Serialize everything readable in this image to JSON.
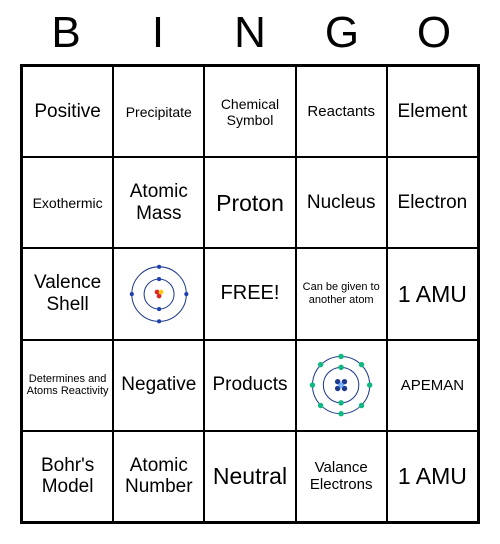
{
  "header": [
    "B",
    "I",
    "N",
    "G",
    "O"
  ],
  "cells": [
    {
      "text": "Positive",
      "cls": "large"
    },
    {
      "text": "Precipitate",
      "cls": ""
    },
    {
      "text": "Chemical Symbol",
      "cls": ""
    },
    {
      "text": "Reactants",
      "cls": "med"
    },
    {
      "text": "Element",
      "cls": "large"
    },
    {
      "text": "Exothermic",
      "cls": ""
    },
    {
      "text": "Atomic Mass",
      "cls": "large"
    },
    {
      "text": "Proton",
      "cls": "xlarge"
    },
    {
      "text": "Nucleus",
      "cls": "large"
    },
    {
      "text": "Electron",
      "cls": "large"
    },
    {
      "text": "Valence Shell",
      "cls": "large"
    },
    {
      "type": "atom1"
    },
    {
      "text": "FREE!",
      "cls": "free"
    },
    {
      "text": "Can be given to another atom",
      "cls": "small"
    },
    {
      "text": "1 AMU",
      "cls": "xlarge"
    },
    {
      "text": "Determines and Atoms Reactivity",
      "cls": "small"
    },
    {
      "text": "Negative",
      "cls": "large"
    },
    {
      "text": "Products",
      "cls": "large"
    },
    {
      "type": "atom2"
    },
    {
      "text": "APEMAN",
      "cls": "med"
    },
    {
      "text": "Bohr's Model",
      "cls": "large"
    },
    {
      "text": "Atomic Number",
      "cls": "large"
    },
    {
      "text": "Neutral",
      "cls": "xlarge"
    },
    {
      "text": "Valance Electrons",
      "cls": "med"
    },
    {
      "text": "1 AMU",
      "cls": "xlarge"
    }
  ],
  "colors": {
    "border": "#000000",
    "bg": "#ffffff",
    "text": "#000000",
    "shell": "#1e3a8a",
    "electron1": "#1e40af",
    "proton": "#dc2626",
    "neutron": "#facc15",
    "nucleus2": "#1e3a8a",
    "electron2": "#10b981",
    "plus": "#60a5fa"
  }
}
